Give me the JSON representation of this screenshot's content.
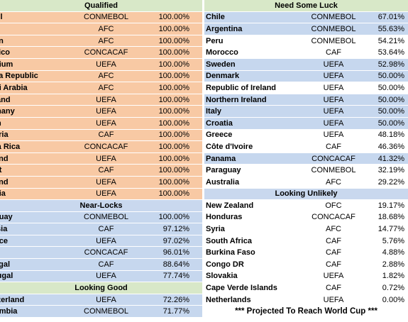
{
  "left": {
    "qualified": {
      "header": "Qualified",
      "rows": [
        {
          "team": "zil",
          "conf": "CONMEBOL",
          "pct": "100.00%"
        },
        {
          "team": "n",
          "conf": "AFC",
          "pct": "100.00%"
        },
        {
          "team": "an",
          "conf": "AFC",
          "pct": "100.00%"
        },
        {
          "team": "xico",
          "conf": "CONCACAF",
          "pct": "100.00%"
        },
        {
          "team": "gium",
          "conf": "UEFA",
          "pct": "100.00%"
        },
        {
          "team": "ea Republic",
          "conf": "AFC",
          "pct": "100.00%"
        },
        {
          "team": "di Arabia",
          "conf": "AFC",
          "pct": "100.00%"
        },
        {
          "team": "land",
          "conf": "UEFA",
          "pct": "100.00%"
        },
        {
          "team": "many",
          "conf": "UEFA",
          "pct": "100.00%"
        },
        {
          "team": "in",
          "conf": "UEFA",
          "pct": "100.00%"
        },
        {
          "team": "eria",
          "conf": "CAF",
          "pct": "100.00%"
        },
        {
          "team": "ta Rica",
          "conf": "CONCACAF",
          "pct": "100.00%"
        },
        {
          "team": "and",
          "conf": "UEFA",
          "pct": "100.00%"
        },
        {
          "team": "pt",
          "conf": "CAF",
          "pct": "100.00%"
        },
        {
          "team": "and",
          "conf": "UEFA",
          "pct": "100.00%"
        },
        {
          "team": "bia",
          "conf": "UEFA",
          "pct": "100.00%"
        }
      ]
    },
    "near_locks": {
      "header": "Near-Locks",
      "rows": [
        {
          "team": "guay",
          "conf": "CONMEBOL",
          "pct": "100.00%"
        },
        {
          "team": "isia",
          "conf": "CAF",
          "pct": "97.12%"
        },
        {
          "team": "nce",
          "conf": "UEFA",
          "pct": "97.02%"
        },
        {
          "team": "A",
          "conf": "CONCACAF",
          "pct": "96.01%"
        },
        {
          "team": "egal",
          "conf": "CAF",
          "pct": "88.64%"
        },
        {
          "team": "tugal",
          "conf": "UEFA",
          "pct": "77.74%"
        }
      ]
    },
    "looking_good": {
      "header": "Looking Good",
      "rows": [
        {
          "team": "tzerland",
          "conf": "UEFA",
          "pct": "72.26%"
        },
        {
          "team": "ombia",
          "conf": "CONMEBOL",
          "pct": "71.77%"
        }
      ]
    }
  },
  "right": {
    "need_some_luck": {
      "header": "Need Some Luck",
      "rows": [
        {
          "team": "Chile",
          "conf": "CONMEBOL",
          "pct": "67.01%"
        },
        {
          "team": "Argentina",
          "conf": "CONMEBOL",
          "pct": "55.63%"
        },
        {
          "team": "Peru",
          "conf": "CONMEBOL",
          "pct": "54.21%"
        },
        {
          "team": "Morocco",
          "conf": "CAF",
          "pct": "53.64%"
        },
        {
          "team": "Sweden",
          "conf": "UEFA",
          "pct": "52.98%"
        },
        {
          "team": "Denmark",
          "conf": "UEFA",
          "pct": "50.00%"
        },
        {
          "team": "Republic of Ireland",
          "conf": "UEFA",
          "pct": "50.00%"
        },
        {
          "team": "Northern Ireland",
          "conf": "UEFA",
          "pct": "50.00%"
        },
        {
          "team": "Italy",
          "conf": "UEFA",
          "pct": "50.00%"
        },
        {
          "team": "Croatia",
          "conf": "UEFA",
          "pct": "50.00%"
        },
        {
          "team": "Greece",
          "conf": "UEFA",
          "pct": "48.18%"
        },
        {
          "team": "Côte d'Ivoire",
          "conf": "CAF",
          "pct": "46.36%"
        },
        {
          "team": "Panama",
          "conf": "CONCACAF",
          "pct": "41.32%"
        },
        {
          "team": "Paraguay",
          "conf": "CONMEBOL",
          "pct": "32.19%"
        },
        {
          "team": "Australia",
          "conf": "AFC",
          "pct": "29.22%"
        }
      ]
    },
    "looking_unlikely": {
      "header": "Looking Unlikely",
      "rows": [
        {
          "team": "New Zealand",
          "conf": "OFC",
          "pct": "19.17%"
        },
        {
          "team": "Honduras",
          "conf": "CONCACAF",
          "pct": "18.68%"
        },
        {
          "team": "Syria",
          "conf": "AFC",
          "pct": "14.77%"
        },
        {
          "team": "South Africa",
          "conf": "CAF",
          "pct": "5.76%"
        },
        {
          "team": "Burkina Faso",
          "conf": "CAF",
          "pct": "4.88%"
        },
        {
          "team": "Congo DR",
          "conf": "CAF",
          "pct": "2.88%"
        },
        {
          "team": "Slovakia",
          "conf": "UEFA",
          "pct": "1.82%"
        },
        {
          "team": "Cape Verde Islands",
          "conf": "CAF",
          "pct": "0.72%"
        },
        {
          "team": "Netherlands",
          "conf": "UEFA",
          "pct": "0.00%"
        }
      ]
    },
    "footer": "*** Projected To Reach World Cup ***"
  },
  "colors": {
    "qualified_row": "#f8c9a4",
    "projected_row": "#c6d7ee",
    "plain_row": "#ffffff",
    "header_bg": "#d8e8c8"
  }
}
